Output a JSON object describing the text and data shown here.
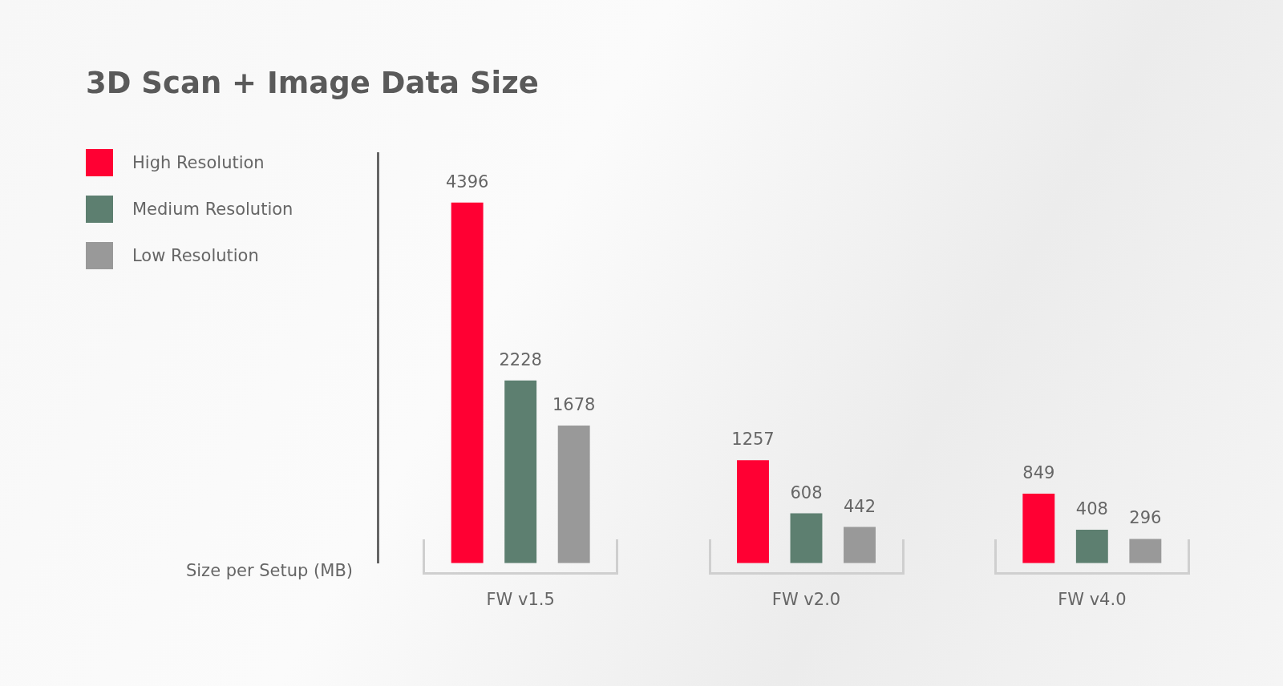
{
  "chart_data": {
    "type": "bar",
    "title": "3D Scan + Image Data Size",
    "ylabel": "Size per Setup (MB)",
    "categories": [
      "FW v1.5",
      "FW v2.0",
      "FW v4.0"
    ],
    "series": [
      {
        "name": "High Resolution",
        "color": "#ff0033",
        "values": [
          4396,
          1257,
          849
        ]
      },
      {
        "name": "Medium Resolution",
        "color": "#5d7f70",
        "values": [
          2228,
          608,
          408
        ]
      },
      {
        "name": "Low Resolution",
        "color": "#999999",
        "values": [
          1678,
          442,
          296
        ]
      }
    ],
    "data_labels": true,
    "legend": "left",
    "grid": false
  }
}
